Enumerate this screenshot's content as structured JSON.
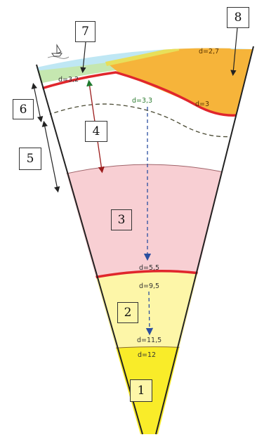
{
  "labels": {
    "n1": "1",
    "n2": "2",
    "n3": "3",
    "n4": "4",
    "n5": "5",
    "n6": "6",
    "n7": "7",
    "n8": "8"
  },
  "densities": {
    "ocean_crust": "d=3,2",
    "continent_top": "d=2,7",
    "continent_base": "d=3",
    "upper_mantle": "d=3,3",
    "lower_mantle_top": "d=5,5",
    "outer_core_top": "d=9,5",
    "outer_core_bottom": "d=11,5",
    "inner_core": "d=12"
  },
  "colors": {
    "ocean": "#bfe7f4",
    "ocean_crust": "#c5e7b0",
    "continent": "#f6b43a",
    "moho": "#e0262c",
    "mantle_upper": "#ffffff",
    "mantle_lower": "#f8cfd3",
    "outer_core": "#fdf6a8",
    "inner_core": "#f9ec29"
  }
}
